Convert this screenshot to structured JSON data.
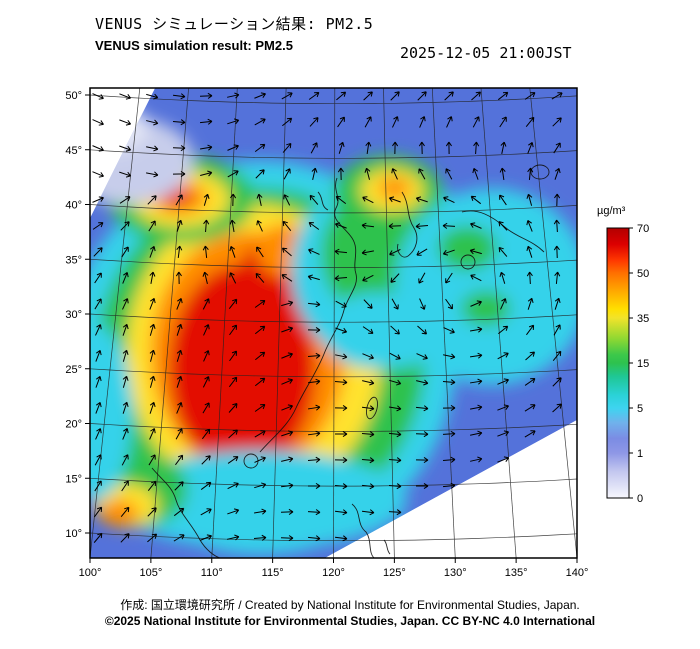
{
  "header": {
    "title_jp": "VENUS シミュレーション結果: PM2.5",
    "title_en": "VENUS simulation result: PM2.5",
    "timestamp": "2025-12-05 21:00JST"
  },
  "footer": {
    "credit": "作成:  国立環境研究所 / Created by National Institute for Environmental Studies, Japan.",
    "copyright": "©2025 National Institute for Environmental Studies, Japan. CC BY-NC 4.0 International"
  },
  "chart_data": {
    "type": "heatmap",
    "title_jp": "VENUS シミュレーション結果: PM2.5",
    "title": "VENUS simulation result: PM2.5",
    "timestamp": "2025-12-05 21:00JST",
    "variable": "PM2.5 concentration",
    "overlay": "wind vector arrows",
    "units": "µg/m³",
    "lon_range": [
      100,
      140
    ],
    "lat_range": [
      10,
      50
    ],
    "lon_ticks": [
      "100°",
      "105°",
      "110°",
      "115°",
      "120°",
      "125°",
      "130°",
      "135°",
      "140°"
    ],
    "lat_ticks": [
      "50°",
      "45°",
      "40°",
      "35°",
      "30°",
      "25°",
      "20°",
      "15°",
      "10°"
    ],
    "grid_interval_deg": 5,
    "colorbar": {
      "label": "µg/m³",
      "tick_values": [
        "70",
        "50",
        "35",
        "15",
        "5",
        "1",
        "0"
      ],
      "levels_top_to_bottom": [
        {
          "range": "50-70",
          "color": "#d40000"
        },
        {
          "range": "35-50",
          "color": "#ffae00"
        },
        {
          "range": "15-35",
          "color": "#2ec24e"
        },
        {
          "range": "5-15",
          "color": "#35d2ea"
        },
        {
          "range": "1-5",
          "color": "#7b8ce4"
        },
        {
          "range": "0-1",
          "color": "#eef0fa"
        }
      ]
    },
    "base_field": {
      "color": "#5472da",
      "description": "background 1-5 µg/m³ over ocean and margins"
    },
    "hotspots": [
      {
        "name": "outer-cyan-ring",
        "lon": 114,
        "lat": 26,
        "rx": 16,
        "ry": 18,
        "color": "#35d2ea"
      },
      {
        "name": "green-ring-east-china",
        "lon": 114,
        "lat": 26,
        "rx": 13.5,
        "ry": 15.5,
        "color": "#2ec24e"
      },
      {
        "name": "yellow-ring",
        "lon": 113.5,
        "lat": 26.5,
        "rx": 10.5,
        "ry": 13.5,
        "color": "#ffe22e"
      },
      {
        "name": "orange-core",
        "lon": 113,
        "lat": 26.5,
        "rx": 8,
        "ry": 11,
        "color": "#ff8c00"
      },
      {
        "name": "red-core-south-china",
        "lon": 112.5,
        "lat": 25,
        "rx": 6,
        "ry": 9.5,
        "color": "#e31000"
      },
      {
        "name": "red-arm-central-china",
        "lon": 115.5,
        "lat": 32.5,
        "rx": 3.4,
        "ry": 4.8,
        "color": "#e31000"
      },
      {
        "name": "orange-tip-north-china",
        "lon": 116,
        "lat": 35.8,
        "rx": 2.4,
        "ry": 2.4,
        "color": "#ff8c00"
      },
      {
        "name": "nw-green-halo",
        "lon": 107.5,
        "lat": 40.5,
        "rx": 6,
        "ry": 4,
        "color": "#2ec24e"
      },
      {
        "name": "nw-yellow",
        "lon": 107.5,
        "lat": 40.5,
        "rx": 4,
        "ry": 2.6,
        "color": "#ffe22e"
      },
      {
        "name": "nw-orange",
        "lon": 107.3,
        "lat": 40.6,
        "rx": 2.3,
        "ry": 1.5,
        "color": "#ff8c00"
      },
      {
        "name": "nw-red-dot",
        "lon": 107.1,
        "lat": 40.7,
        "rx": 1.1,
        "ry": 0.8,
        "color": "#e31000"
      },
      {
        "name": "yellow-sea-cyan",
        "lon": 124.5,
        "lat": 34,
        "rx": 8,
        "ry": 9,
        "color": "#35d2ea"
      },
      {
        "name": "yellow-sea-green",
        "lon": 124,
        "lat": 35.5,
        "rx": 5,
        "ry": 6,
        "color": "#2ec24e"
      },
      {
        "name": "ne-china-green",
        "lon": 124.5,
        "lat": 41,
        "rx": 4.5,
        "ry": 3.5,
        "color": "#2ec24e"
      },
      {
        "name": "ne-china-yellow",
        "lon": 124.8,
        "lat": 41.3,
        "rx": 2.6,
        "ry": 2,
        "color": "#ffe22e"
      },
      {
        "name": "ne-china-orange",
        "lon": 125,
        "lat": 41.5,
        "rx": 1.3,
        "ry": 1,
        "color": "#ff8c00"
      },
      {
        "name": "east-china-sea-cyan",
        "lon": 123.5,
        "lat": 28.5,
        "rx": 4.5,
        "ry": 3.5,
        "color": "#35d2ea"
      },
      {
        "name": "japan-cyan",
        "lon": 133,
        "lat": 32.5,
        "rx": 8,
        "ry": 9,
        "color": "#35d2ea"
      },
      {
        "name": "sea-of-japan-green",
        "lon": 131,
        "lat": 36,
        "rx": 2.4,
        "ry": 2,
        "color": "#2ec24e"
      },
      {
        "name": "shikoku-green",
        "lon": 132.5,
        "lat": 30.5,
        "rx": 2,
        "ry": 1.6,
        "color": "#2ec24e"
      },
      {
        "name": "south-cyan-band",
        "lon": 114,
        "lat": 13,
        "rx": 12,
        "ry": 4.5,
        "color": "#35d2ea"
      },
      {
        "name": "sw-green",
        "lon": 104,
        "lat": 14,
        "rx": 4,
        "ry": 3.5,
        "color": "#2ec24e"
      },
      {
        "name": "sw-yellow",
        "lon": 103,
        "lat": 12.5,
        "rx": 2.6,
        "ry": 2,
        "color": "#ffe22e"
      },
      {
        "name": "sw-orange",
        "lon": 102.4,
        "lat": 11.8,
        "rx": 1.6,
        "ry": 1.2,
        "color": "#ff8c00"
      },
      {
        "name": "west-edge-cyan",
        "lon": 100.5,
        "lat": 21,
        "rx": 3,
        "ry": 8,
        "color": "#35d2ea"
      },
      {
        "name": "pale-northwest",
        "lon": 103,
        "lat": 44,
        "rx": 5.5,
        "ry": 4,
        "color": "#c7cdeb"
      },
      {
        "name": "pale-northwest-2",
        "lon": 101.8,
        "lat": 47,
        "rx": 3,
        "ry": 2.2,
        "color": "#e2e5f5"
      }
    ]
  }
}
